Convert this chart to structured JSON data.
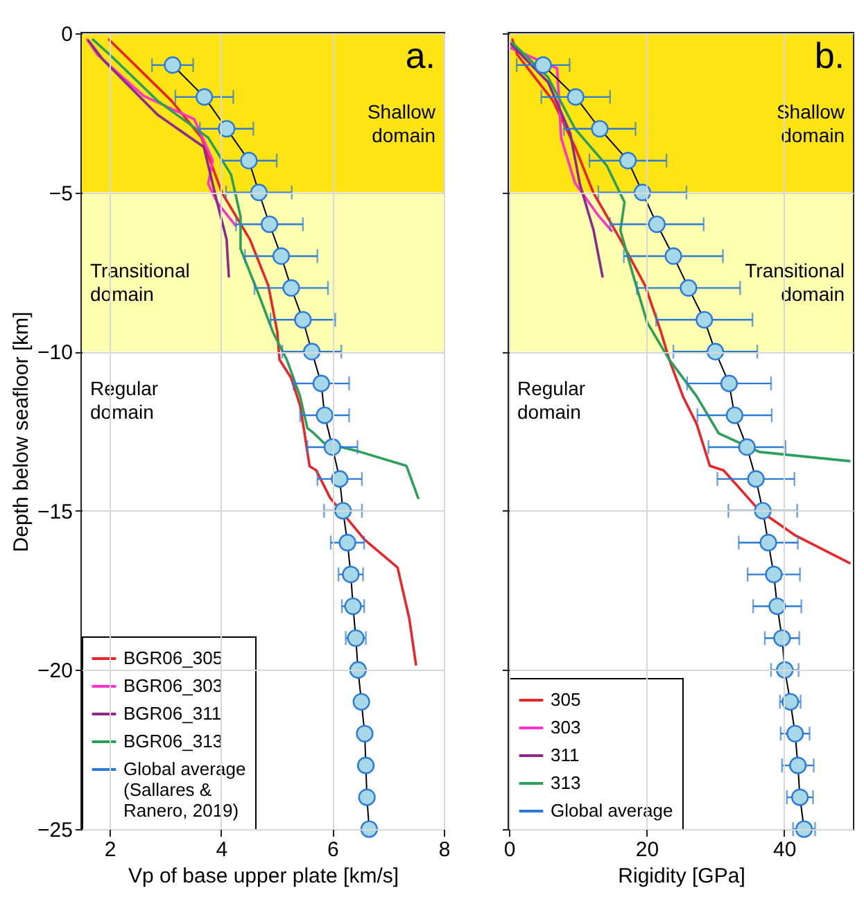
{
  "chart_data": [
    {
      "type": "line",
      "xlabel": "Vp of base upper plate [km/s]",
      "ylabel": "Depth below seafloor [km]",
      "xlim": [
        1.5,
        8
      ],
      "xticks": [
        2,
        4,
        6,
        8
      ],
      "ylim": [
        -25,
        0
      ],
      "yticks": [
        0,
        -5,
        -10,
        -15,
        -20,
        -25
      ],
      "grid": true,
      "legend": "bottom left",
      "annotations": [
        "a."
      ],
      "bands": [
        {
          "axis": "y",
          "from": -5,
          "to": 0,
          "label": "Shallow domain",
          "color": "#ffe414"
        },
        {
          "axis": "y",
          "from": -10,
          "to": -5,
          "label": "Transitional domain",
          "color": "#ffffb0"
        },
        {
          "axis": "y",
          "from": -25,
          "to": -10,
          "label": "Regular domain",
          "color": "#ffffff"
        }
      ],
      "series": [
        {
          "name": "BGR06_305",
          "color": "#e8262a",
          "x": [
            1.99,
            3.11,
            3.65,
            4.02,
            4.52,
            4.85,
            5.01,
            5.05,
            5.26,
            5.42,
            5.5,
            5.59,
            5.71,
            5.96,
            6.58,
            7.17,
            7.38,
            7.5
          ],
          "values": [
            -0.2,
            -2.12,
            -3.28,
            -5.02,
            -6.48,
            -7.93,
            -9.38,
            -10.25,
            -10.83,
            -11.7,
            -12.57,
            -13.6,
            -13.73,
            -14.6,
            -15.91,
            -16.78,
            -18.38,
            -19.83
          ]
        },
        {
          "name": "BGR06_303",
          "color": "#ff33cc",
          "x": [
            1.6,
            1.78,
            2.61,
            3.52,
            3.85,
            3.77,
            3.93,
            4.26
          ],
          "values": [
            -0.2,
            -0.67,
            -1.97,
            -2.7,
            -4.0,
            -4.73,
            -5.31,
            -6.04
          ]
        },
        {
          "name": "BGR06_311",
          "color": "#8b2a8b",
          "x": [
            1.62,
            1.87,
            2.86,
            3.69,
            3.93,
            4.1,
            4.14
          ],
          "values": [
            -0.23,
            -0.81,
            -2.56,
            -3.57,
            -5.31,
            -6.48,
            -7.64
          ]
        },
        {
          "name": "BGR06_313",
          "color": "#2ca05a",
          "x": [
            1.7,
            2.0,
            2.86,
            3.77,
            4.18,
            4.35,
            4.35,
            4.68,
            4.93,
            5.18,
            5.42,
            5.55,
            5.67,
            5.84,
            6.5,
            7.33,
            7.54
          ],
          "values": [
            -0.2,
            -0.67,
            -2.12,
            -3.28,
            -4.44,
            -5.75,
            -6.77,
            -8.22,
            -9.38,
            -10.25,
            -11.41,
            -12.4,
            -12.57,
            -12.86,
            -13.15,
            -13.59,
            -14.6
          ]
        },
        {
          "name": "Global average (Sallares & Ranero, 2019)",
          "color": "#2b7bd6",
          "marker": "circle",
          "x": [
            3.13,
            3.7,
            4.1,
            4.5,
            4.68,
            4.87,
            5.08,
            5.26,
            5.47,
            5.63,
            5.8,
            5.86,
            6.0,
            6.13,
            6.19,
            6.27,
            6.33,
            6.37,
            6.42,
            6.46,
            6.52,
            6.58,
            6.6,
            6.62,
            6.66
          ],
          "values": [
            -1,
            -2,
            -3,
            -4,
            -5,
            -6,
            -7,
            -8,
            -9,
            -10,
            -11,
            -12,
            -13,
            -14,
            -15,
            -16,
            -17,
            -18,
            -19,
            -20,
            -21,
            -22,
            -23,
            -24,
            -25
          ],
          "xerrors": [
            0.37,
            0.52,
            0.48,
            0.5,
            0.59,
            0.6,
            0.65,
            0.66,
            0.58,
            0.53,
            0.5,
            0.44,
            0.45,
            0.4,
            0.34,
            0.3,
            0.22,
            0.2,
            0.18,
            null,
            null,
            null,
            null,
            null,
            null
          ]
        }
      ]
    },
    {
      "type": "line",
      "xlabel": "Rigidity [GPa]",
      "xlim": [
        0,
        50
      ],
      "xticks": [
        0,
        20,
        40
      ],
      "ylim": [
        -25,
        0
      ],
      "yticks": [
        0,
        -5,
        -10,
        -15,
        -20,
        -25
      ],
      "grid": true,
      "legend": "bottom left",
      "tick_labels": "x",
      "annotations": [
        "b."
      ],
      "bands": [
        {
          "axis": "y",
          "from": -5,
          "to": 0,
          "label": "Shallow domain",
          "color": "#ffe414"
        },
        {
          "axis": "y",
          "from": -10,
          "to": -5,
          "label": "Transitional domain",
          "color": "#ffffb0"
        },
        {
          "axis": "y",
          "from": -25,
          "to": -10,
          "label": "Regular domain",
          "color": "#ffffff"
        }
      ],
      "series": [
        {
          "name": "305",
          "color": "#e8262a",
          "x": [
            0.5,
            1.2,
            6.4,
            9.6,
            12.3,
            16.2,
            19.8,
            22.1,
            23.3,
            25.3,
            27.3,
            29.2,
            31.2,
            36.4,
            41.6,
            49.5
          ],
          "values": [
            -0.2,
            -0.67,
            -2.12,
            -3.57,
            -5.02,
            -6.48,
            -7.93,
            -9.38,
            -10.25,
            -11.41,
            -12.28,
            -13.59,
            -13.73,
            -14.99,
            -15.77,
            -16.64
          ]
        },
        {
          "name": "303",
          "color": "#ff33cc",
          "x": [
            0.1,
            7.0,
            7.6,
            9.6,
            12.9,
            14.9
          ],
          "values": [
            -0.45,
            -1.1,
            -3.3,
            -4.7,
            -5.7,
            -6.2
          ]
        },
        {
          "name": "311",
          "color": "#8b2a8b",
          "x": [
            0.1,
            5.7,
            8.9,
            10.3,
            12.3,
            13.6
          ],
          "values": [
            -0.3,
            -1.54,
            -3.14,
            -4.73,
            -6.19,
            -7.64
          ]
        },
        {
          "name": "313",
          "color": "#2ca05a",
          "x": [
            0.5,
            5.7,
            9.6,
            14.2,
            16.8,
            16.2,
            18.1,
            20.1,
            23.3,
            27.3,
            30.5,
            36.4,
            49.5
          ],
          "values": [
            -0.3,
            -1.39,
            -3.0,
            -4.15,
            -5.31,
            -6.19,
            -7.64,
            -9.09,
            -10.25,
            -11.41,
            -12.57,
            -13.15,
            -13.44
          ]
        },
        {
          "name": "Global average",
          "color": "#2b7bd6",
          "marker": "circle",
          "x": [
            4.97,
            9.7,
            13.2,
            17.3,
            19.4,
            21.5,
            23.9,
            26.1,
            28.4,
            30.0,
            32.0,
            32.8,
            34.6,
            35.9,
            36.9,
            37.7,
            38.5,
            39.0,
            39.7,
            40.1,
            40.9,
            41.6,
            42.0,
            42.3,
            42.9
          ],
          "values": [
            -1,
            -2,
            -3,
            -4,
            -5,
            -6,
            -7,
            -8,
            -9,
            -10,
            -11,
            -12,
            -13,
            -14,
            -15,
            -16,
            -17,
            -18,
            -19,
            -20,
            -21,
            -22,
            -23,
            -24,
            -25
          ],
          "xerrors": [
            3.85,
            5.0,
            5.2,
            5.6,
            6.4,
            6.8,
            7.2,
            7.5,
            7.0,
            6.1,
            6.1,
            5.4,
            5.6,
            5.6,
            5.0,
            4.3,
            3.8,
            3.5,
            2.5,
            2.0,
            1.5,
            2.1,
            2.3,
            1.9,
            1.6
          ]
        }
      ]
    }
  ]
}
